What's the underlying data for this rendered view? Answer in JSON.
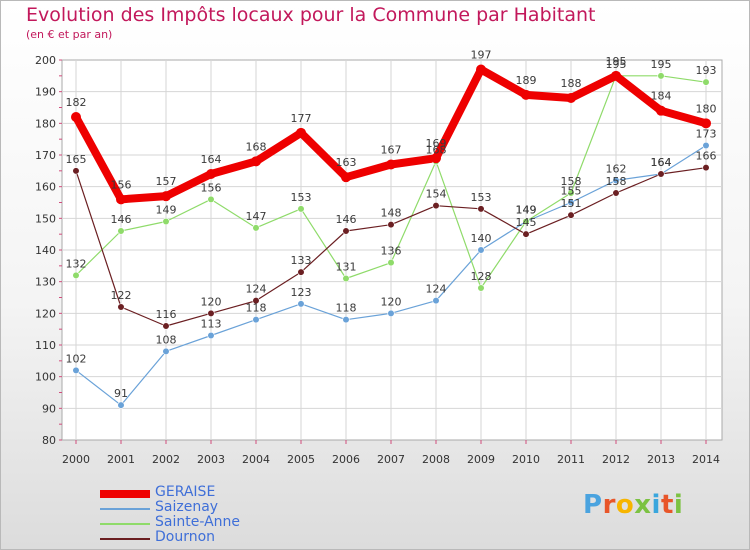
{
  "header": {
    "title": "Evolution des Impôts locaux pour la Commune par Habitant",
    "subtitle": "(en € et par an)"
  },
  "brand": {
    "logo_text": "Proxiti",
    "letter_colors": [
      "#4aa3df",
      "#e8562a",
      "#f7b500",
      "#7cc242",
      "#3aa6dd",
      "#e8562a",
      "#7cc242"
    ]
  },
  "chart_data": {
    "type": "line",
    "title": "Evolution des Impôts locaux pour la Commune par Habitant",
    "subtitle": "(en € et par an)",
    "x": [
      "2000",
      "2001",
      "2002",
      "2003",
      "2004",
      "2005",
      "2006",
      "2007",
      "2008",
      "2009",
      "2010",
      "2011",
      "2012",
      "2013",
      "2014"
    ],
    "ylim": [
      80,
      200
    ],
    "yticks": [
      80,
      90,
      100,
      110,
      120,
      130,
      140,
      150,
      160,
      170,
      180,
      190,
      200
    ],
    "grid": true,
    "legend_position": "bottom-left",
    "series": [
      {
        "name": "GERAISE",
        "color": "#ee0000",
        "values": [
          182,
          156,
          157,
          164,
          168,
          177,
          163,
          167,
          169,
          197,
          189,
          188,
          195,
          184,
          180
        ]
      },
      {
        "name": "Saizenay",
        "color": "#6aa2d8",
        "values": [
          102,
          91,
          108,
          113,
          118,
          123,
          118,
          120,
          124,
          140,
          149,
          155,
          162,
          164,
          173
        ]
      },
      {
        "name": "Sainte-Anne",
        "color": "#8fdb6a",
        "values": [
          132,
          146,
          149,
          156,
          147,
          153,
          131,
          136,
          168,
          128,
          149,
          158,
          195,
          195,
          193
        ]
      },
      {
        "name": "Dournon",
        "color": "#6b1f22",
        "values": [
          165,
          122,
          116,
          120,
          124,
          133,
          146,
          148,
          154,
          153,
          145,
          151,
          158,
          164,
          166
        ]
      }
    ]
  }
}
